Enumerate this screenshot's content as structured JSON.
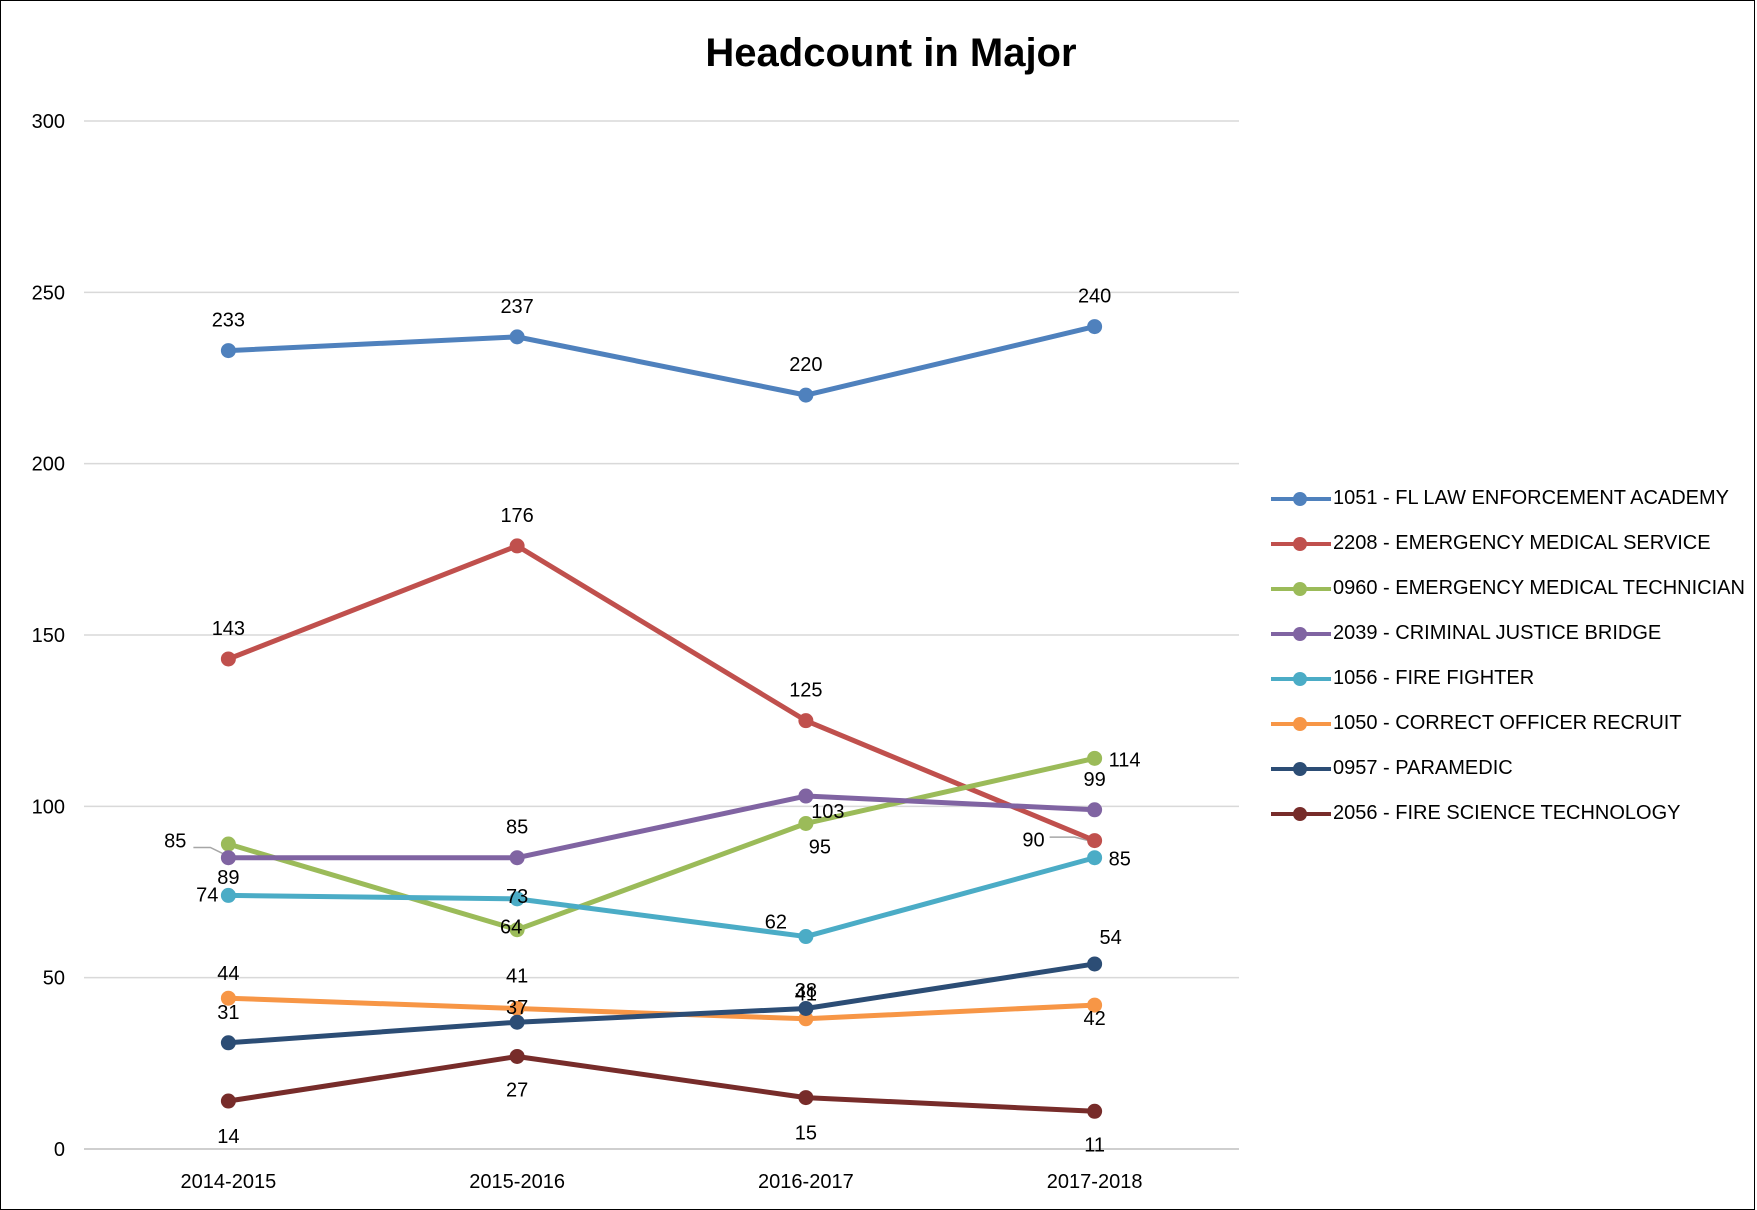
{
  "chart_data": {
    "type": "line",
    "title": "Headcount in Major",
    "xlabel": "",
    "ylabel": "",
    "categories": [
      "2014-2015",
      "2015-2016",
      "2016-2017",
      "2017-2018"
    ],
    "ylim": [
      0,
      300
    ],
    "yticks": [
      0,
      50,
      100,
      150,
      200,
      250,
      300
    ],
    "grid": true,
    "legend_position": "right",
    "series": [
      {
        "name": "1051 - FL LAW ENFORCEMENT ACADEMY",
        "color": "#4f81bd",
        "values": [
          233,
          237,
          220,
          240
        ]
      },
      {
        "name": "2208 - EMERGENCY MEDICAL SERVICE",
        "color": "#c0504d",
        "values": [
          143,
          176,
          125,
          90
        ]
      },
      {
        "name": "0960 - EMERGENCY MEDICAL TECHNICIAN",
        "color": "#9bbb59",
        "values": [
          89,
          64,
          95,
          114
        ]
      },
      {
        "name": "2039 - CRIMINAL JUSTICE BRIDGE",
        "color": "#8064a2",
        "values": [
          85,
          85,
          103,
          99
        ]
      },
      {
        "name": "1056 - FIRE FIGHTER",
        "color": "#4bacc6",
        "values": [
          74,
          73,
          62,
          85
        ]
      },
      {
        "name": "1050 - CORRECT OFFICER RECRUIT",
        "color": "#f79646",
        "values": [
          44,
          41,
          38,
          42
        ]
      },
      {
        "name": "0957 - PARAMEDIC",
        "color": "#2c4d75",
        "values": [
          31,
          37,
          41,
          54
        ]
      },
      {
        "name": "2056 - FIRE SCIENCE TECHNOLOGY",
        "color": "#772c2a",
        "values": [
          14,
          27,
          15,
          11
        ]
      }
    ]
  }
}
